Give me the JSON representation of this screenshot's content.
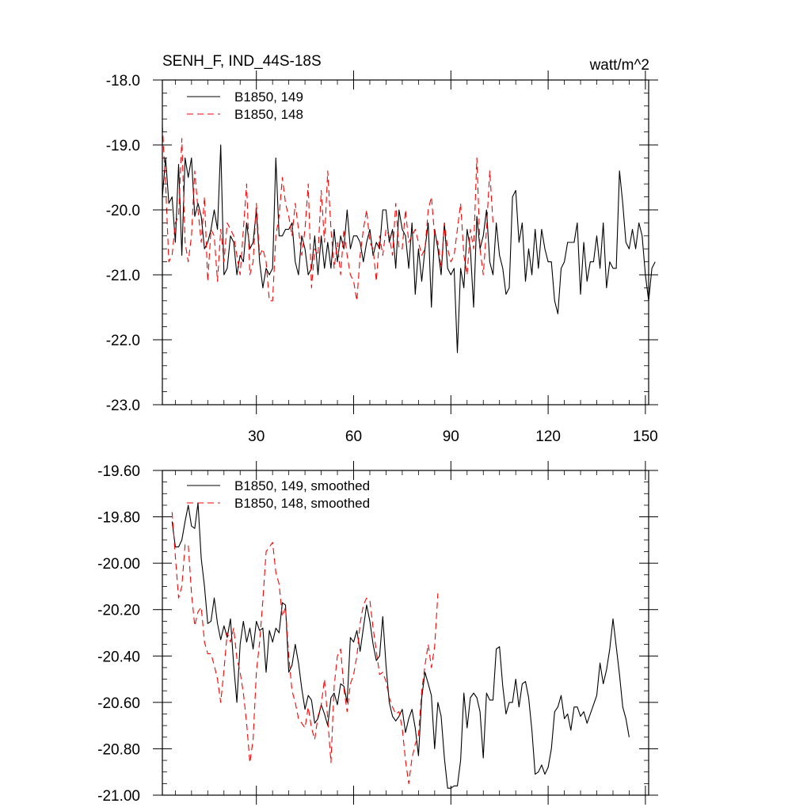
{
  "chart_data": [
    {
      "type": "line",
      "title": "SENH_F, IND_44S-18S",
      "units": "watt/m^2",
      "xlim": [
        1,
        151
      ],
      "ylim": [
        -23.0,
        -18.0
      ],
      "x_ticks": [
        30,
        60,
        90,
        120,
        150
      ],
      "x_tick_labels": [
        "30",
        "60",
        "90",
        "120",
        "150"
      ],
      "y_ticks": [
        -23.0,
        -22.0,
        -21.0,
        -20.0,
        -19.0,
        -18.0
      ],
      "y_tick_labels": [
        "-23.0",
        "-22.0",
        "-21.0",
        "-20.0",
        "-19.0",
        "-18.0"
      ],
      "legend_position": "top-left",
      "grid": false,
      "series": [
        {
          "name": "B1850, 149",
          "color": "#000000",
          "dash": "solid",
          "x_start": 1,
          "values": [
            -19.8,
            -19.2,
            -19.9,
            -19.8,
            -20.5,
            -19.3,
            -20.7,
            -19.2,
            -19.5,
            -19.2,
            -20.1,
            -19.9,
            -20.1,
            -20.6,
            -20.5,
            -20.3,
            -20.0,
            -20.3,
            -19.0,
            -21.0,
            -20.9,
            -20.4,
            -20.5,
            -21.0,
            -20.7,
            -20.8,
            -20.2,
            -20.6,
            -20.5,
            -20.0,
            -20.8,
            -21.2,
            -20.9,
            -21.0,
            -20.9,
            -19.2,
            -20.4,
            -20.4,
            -20.3,
            -20.3,
            -20.2,
            -20.8,
            -21.0,
            -20.4,
            -20.6,
            -21.0,
            -20.9,
            -20.4,
            -21.0,
            -20.4,
            -20.9,
            -20.5,
            -20.9,
            -20.3,
            -20.8,
            -20.4,
            -20.6,
            -20.0,
            -20.6,
            -20.4,
            -20.4,
            -20.5,
            -20.8,
            -20.5,
            -20.3,
            -20.7,
            -20.5,
            -20.6,
            -20.0,
            -20.0,
            -20.5,
            -20.3,
            -20.9,
            -20.0,
            -20.3,
            -20.4,
            -20.9,
            -20.2,
            -21.3,
            -20.6,
            -21.1,
            -20.6,
            -20.2,
            -21.5,
            -20.3,
            -20.6,
            -21.0,
            -20.2,
            -20.9,
            -21.0,
            -20.9,
            -22.2,
            -20.9,
            -21.2,
            -20.3,
            -20.6,
            -21.5,
            -20.1,
            -20.6,
            -20.4,
            -20.0,
            -20.8,
            -21.0,
            -20.2,
            -20.7,
            -20.9,
            -21.3,
            -21.2,
            -19.8,
            -19.7,
            -20.5,
            -20.2,
            -21.1,
            -20.6,
            -21.0,
            -20.3,
            -20.9,
            -20.3,
            -20.6,
            -20.8,
            -20.8,
            -21.4,
            -21.6,
            -20.9,
            -20.8,
            -20.5,
            -20.5,
            -20.5,
            -20.2,
            -21.3,
            -20.5,
            -21.1,
            -20.8,
            -20.8,
            -20.4,
            -20.9,
            -20.2,
            -21.2,
            -20.8,
            -20.9,
            -20.9,
            -19.4,
            -19.9,
            -20.5,
            -20.6,
            -20.3,
            -20.6,
            -20.2,
            -20.4,
            -21.0,
            -21.4,
            -20.9,
            -20.8
          ]
        },
        {
          "name": "B1850, 148",
          "color": "#ff0000",
          "dash": "dashed",
          "x_start": 1,
          "values": [
            -18.7,
            -19.6,
            -20.8,
            -20.7,
            -20.2,
            -20.1,
            -18.9,
            -20.5,
            -20.8,
            -20.4,
            -19.4,
            -20.0,
            -20.5,
            -19.8,
            -21.1,
            -20.3,
            -20.4,
            -21.1,
            -20.3,
            -20.8,
            -20.2,
            -20.3,
            -20.4,
            -20.7,
            -21.0,
            -20.3,
            -19.6,
            -21.0,
            -20.8,
            -19.9,
            -20.7,
            -20.6,
            -20.8,
            -21.4,
            -21.4,
            -20.4,
            -20.1,
            -19.5,
            -19.9,
            -20.1,
            -20.4,
            -19.9,
            -20.3,
            -20.7,
            -20.3,
            -19.6,
            -21.2,
            -20.6,
            -20.7,
            -19.7,
            -20.5,
            -19.4,
            -20.3,
            -20.9,
            -20.5,
            -21.0,
            -20.3,
            -20.7,
            -21.0,
            -21.1,
            -21.4,
            -20.7,
            -20.3,
            -20.0,
            -20.5,
            -20.6,
            -21.1,
            -20.4,
            -20.7,
            -20.3,
            -20.4,
            -20.7,
            -19.9,
            -20.6,
            -20.6,
            -20.0,
            -20.5,
            -20.4,
            -20.3,
            -20.5,
            -20.7,
            -20.6,
            -20.0,
            -19.8,
            -20.4,
            -20.5,
            -20.9,
            -20.2,
            -20.6,
            -20.8,
            -20.7,
            -20.3,
            -19.9,
            -20.7,
            -21.0,
            -20.3,
            -20.6,
            -19.2,
            -20.6,
            -21.0,
            -20.3,
            -19.4,
            -20.2
          ]
        }
      ]
    },
    {
      "type": "line",
      "xlim": [
        1,
        151
      ],
      "ylim": [
        -21.0,
        -19.6
      ],
      "x_ticks": [
        30,
        60,
        90,
        120,
        150
      ],
      "y_ticks": [
        -21.0,
        -20.8,
        -20.6,
        -20.4,
        -20.2,
        -20.0,
        -19.8,
        -19.6
      ],
      "y_tick_labels": [
        "-21.00",
        "-20.80",
        "-20.60",
        "-20.40",
        "-20.20",
        "-20.00",
        "-19.80",
        "-19.60"
      ],
      "legend_position": "top-left",
      "grid": false,
      "series": [
        {
          "name": "B1850, 149, smoothed",
          "color": "#000000",
          "dash": "solid",
          "x_start": 4,
          "values": [
            -19.82,
            -19.93,
            -19.93,
            -19.9,
            -19.82,
            -19.75,
            -19.84,
            -19.85,
            -19.74,
            -19.98,
            -20.1,
            -20.26,
            -20.25,
            -20.15,
            -20.26,
            -20.33,
            -20.27,
            -20.32,
            -20.24,
            -20.44,
            -20.6,
            -20.35,
            -20.25,
            -20.34,
            -20.28,
            -20.37,
            -20.25,
            -20.29,
            -20.28,
            -20.47,
            -20.29,
            -20.34,
            -20.28,
            -20.3,
            -20.17,
            -20.18,
            -20.47,
            -20.44,
            -20.35,
            -20.43,
            -20.54,
            -20.63,
            -20.57,
            -20.59,
            -20.69,
            -20.67,
            -20.61,
            -20.65,
            -20.7,
            -20.58,
            -20.56,
            -20.61,
            -20.52,
            -20.53,
            -20.6,
            -20.32,
            -20.34,
            -20.29,
            -20.38,
            -20.28,
            -20.18,
            -20.25,
            -20.35,
            -20.42,
            -20.4,
            -20.23,
            -20.44,
            -20.6,
            -20.66,
            -20.68,
            -20.66,
            -20.63,
            -20.73,
            -20.67,
            -20.63,
            -20.71,
            -20.83,
            -20.58,
            -20.47,
            -20.52,
            -20.57,
            -20.8,
            -20.6,
            -20.66,
            -20.84,
            -20.97,
            -20.97,
            -20.96,
            -20.96,
            -20.85,
            -20.56,
            -20.71,
            -20.58,
            -20.56,
            -20.58,
            -20.64,
            -20.84,
            -20.56,
            -20.59,
            -20.59,
            -20.37,
            -20.36,
            -20.53,
            -20.65,
            -20.6,
            -20.6,
            -20.5,
            -20.62,
            -20.52,
            -20.51,
            -20.58,
            -20.72,
            -20.91,
            -20.9,
            -20.87,
            -20.91,
            -20.88,
            -20.8,
            -20.64,
            -20.62,
            -20.57,
            -20.67,
            -20.65,
            -20.72,
            -20.62,
            -20.62,
            -20.66,
            -20.64,
            -20.69,
            -20.65,
            -20.61,
            -20.57,
            -20.43,
            -20.52,
            -20.46,
            -20.37,
            -20.24,
            -20.36,
            -20.48,
            -20.62,
            -20.67,
            -20.75
          ]
        },
        {
          "name": "B1850, 148, smoothed",
          "color": "#ff0000",
          "dash": "dashed",
          "x_start": 4,
          "values": [
            -19.78,
            -19.97,
            -20.15,
            -20.1,
            -19.92,
            -19.92,
            -20.13,
            -20.27,
            -20.21,
            -20.19,
            -20.34,
            -20.39,
            -20.39,
            -20.44,
            -20.5,
            -20.6,
            -20.46,
            -20.3,
            -20.34,
            -20.28,
            -20.41,
            -20.47,
            -20.56,
            -20.69,
            -20.86,
            -20.76,
            -20.47,
            -20.34,
            -20.16,
            -19.95,
            -19.93,
            -19.91,
            -20.04,
            -20.09,
            -20.23,
            -20.19,
            -20.4,
            -20.55,
            -20.6,
            -20.67,
            -20.69,
            -20.71,
            -20.62,
            -20.71,
            -20.76,
            -20.66,
            -20.61,
            -20.5,
            -20.67,
            -20.86,
            -20.53,
            -20.4,
            -20.37,
            -20.54,
            -20.64,
            -20.52,
            -20.48,
            -20.4,
            -20.26,
            -20.18,
            -20.15,
            -20.16,
            -20.28,
            -20.38,
            -20.48,
            -20.47,
            -20.51,
            -20.58,
            -20.62,
            -20.65,
            -20.64,
            -20.71,
            -20.85,
            -20.95,
            -20.84,
            -20.78,
            -20.74,
            -20.55,
            -20.44,
            -20.35,
            -20.45,
            -20.36,
            -20.13
          ]
        }
      ]
    }
  ]
}
